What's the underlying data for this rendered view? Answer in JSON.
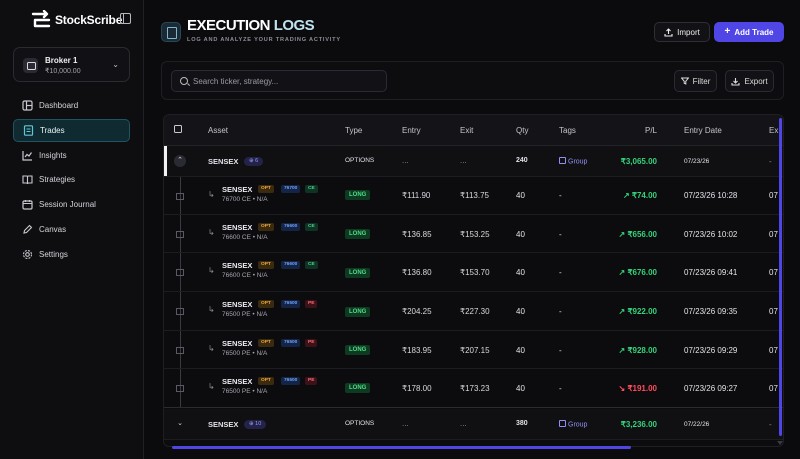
{
  "app": {
    "name": "StockScribe"
  },
  "broker": {
    "name": "Broker 1",
    "balance": "₹10,000.00"
  },
  "nav": [
    {
      "label": "Dashboard",
      "icon": "grid-icon"
    },
    {
      "label": "Trades",
      "icon": "document-icon",
      "active": true
    },
    {
      "label": "Insights",
      "icon": "chart-icon"
    },
    {
      "label": "Strategies",
      "icon": "book-icon"
    },
    {
      "label": "Session Journal",
      "icon": "calendar-icon"
    },
    {
      "label": "Canvas",
      "icon": "pen-icon"
    },
    {
      "label": "Settings",
      "icon": "gear-icon"
    }
  ],
  "header": {
    "title_a": "EXECUTION",
    "title_b": "LOGS",
    "subtitle": "LOG AND ANALYZE YOUR TRADING ACTIVITY",
    "import_label": "Import",
    "add_label": "Add Trade"
  },
  "toolbar": {
    "search_placeholder": "Search ticker, strategy...",
    "filter_label": "Filter",
    "export_label": "Export"
  },
  "table": {
    "columns": [
      "Asset",
      "Type",
      "Entry",
      "Exit",
      "Qty",
      "Tags",
      "P/L",
      "Entry Date",
      "Ex"
    ],
    "groups": [
      {
        "asset": "SENSEX",
        "count": "6",
        "type": "OPTIONS",
        "entry": "...",
        "exit": "...",
        "qty": "240",
        "tag": "Group",
        "pl": "₹3,065.00",
        "date": "07/23/26",
        "extra": "-",
        "children": [
          {
            "asset": "SENSEX",
            "opt": "OPT",
            "strike": "76700",
            "side": "CE",
            "sub": "76700 CE • N/A",
            "type": "LONG",
            "entry": "₹111.90",
            "exit": "₹113.75",
            "qty": "40",
            "tag": "-",
            "pl": "₹74.00",
            "dir": "up",
            "date": "07/23/26 10:28",
            "extra": "07"
          },
          {
            "asset": "SENSEX",
            "opt": "OPT",
            "strike": "76600",
            "side": "CE",
            "sub": "76600 CE • N/A",
            "type": "LONG",
            "entry": "₹136.85",
            "exit": "₹153.25",
            "qty": "40",
            "tag": "-",
            "pl": "₹656.00",
            "dir": "up",
            "date": "07/23/26 10:02",
            "extra": "07"
          },
          {
            "asset": "SENSEX",
            "opt": "OPT",
            "strike": "76600",
            "side": "CE",
            "sub": "76600 CE • N/A",
            "type": "LONG",
            "entry": "₹136.80",
            "exit": "₹153.70",
            "qty": "40",
            "tag": "-",
            "pl": "₹676.00",
            "dir": "up",
            "date": "07/23/26 09:41",
            "extra": "07"
          },
          {
            "asset": "SENSEX",
            "opt": "OPT",
            "strike": "76500",
            "side": "PE",
            "sub": "76500 PE • N/A",
            "type": "LONG",
            "entry": "₹204.25",
            "exit": "₹227.30",
            "qty": "40",
            "tag": "-",
            "pl": "₹922.00",
            "dir": "up",
            "date": "07/23/26 09:35",
            "extra": "07"
          },
          {
            "asset": "SENSEX",
            "opt": "OPT",
            "strike": "76500",
            "side": "PE",
            "sub": "76500 PE • N/A",
            "type": "LONG",
            "entry": "₹183.95",
            "exit": "₹207.15",
            "qty": "40",
            "tag": "-",
            "pl": "₹928.00",
            "dir": "up",
            "date": "07/23/26 09:29",
            "extra": "07"
          },
          {
            "asset": "SENSEX",
            "opt": "OPT",
            "strike": "76500",
            "side": "PE",
            "sub": "76500 PE • N/A",
            "type": "LONG",
            "entry": "₹178.00",
            "exit": "₹173.23",
            "qty": "40",
            "tag": "-",
            "pl": "₹191.00",
            "dir": "down",
            "date": "07/23/26 09:27",
            "extra": "07"
          }
        ]
      },
      {
        "asset": "SENSEX",
        "count": "10",
        "type": "OPTIONS",
        "entry": "...",
        "exit": "...",
        "qty": "380",
        "tag": "Group",
        "pl": "₹3,236.00",
        "date": "07/22/26",
        "extra": "-"
      }
    ]
  },
  "colors": {
    "accent": "#4f46e5",
    "profit": "#34d27a",
    "loss": "#ff4d5e",
    "active_nav": "#0f2a30"
  }
}
